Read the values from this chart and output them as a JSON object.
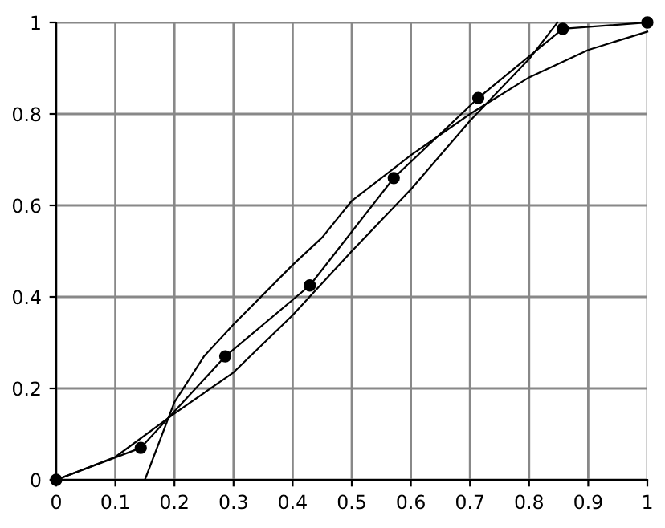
{
  "chart_data": {
    "type": "line",
    "xlim": [
      0,
      1
    ],
    "ylim": [
      0,
      1
    ],
    "xticks": [
      0,
      0.1,
      0.2,
      0.3,
      0.4,
      0.5,
      0.6,
      0.7,
      0.8,
      0.9,
      1
    ],
    "yticks": [
      0,
      0.2,
      0.4,
      0.6,
      0.8,
      1
    ],
    "grid": true,
    "legend": false,
    "series": [
      {
        "color": "#000000",
        "marker": "circle",
        "x": [
          0,
          0.143,
          0.286,
          0.429,
          0.571,
          0.714,
          0.857,
          1
        ],
        "values": [
          0,
          0.07,
          0.27,
          0.425,
          0.66,
          0.835,
          0.986,
          1
        ]
      },
      {
        "color": "#000000",
        "marker": "none",
        "x": [
          0.15,
          0.2,
          0.25,
          0.3,
          0.4,
          0.45,
          0.5,
          0.6,
          0.7,
          0.8,
          0.9,
          1
        ],
        "values": [
          0,
          0.17,
          0.27,
          0.34,
          0.47,
          0.53,
          0.61,
          0.71,
          0.8,
          0.88,
          0.94,
          0.98
        ]
      },
      {
        "color": "#000000",
        "marker": "none",
        "x": [
          0,
          0.1,
          0.2,
          0.3,
          0.4,
          0.5,
          0.6,
          0.7,
          0.8,
          0.848
        ],
        "values": [
          0,
          0.05,
          0.145,
          0.235,
          0.36,
          0.5,
          0.635,
          0.785,
          0.92,
          1
        ]
      }
    ]
  }
}
